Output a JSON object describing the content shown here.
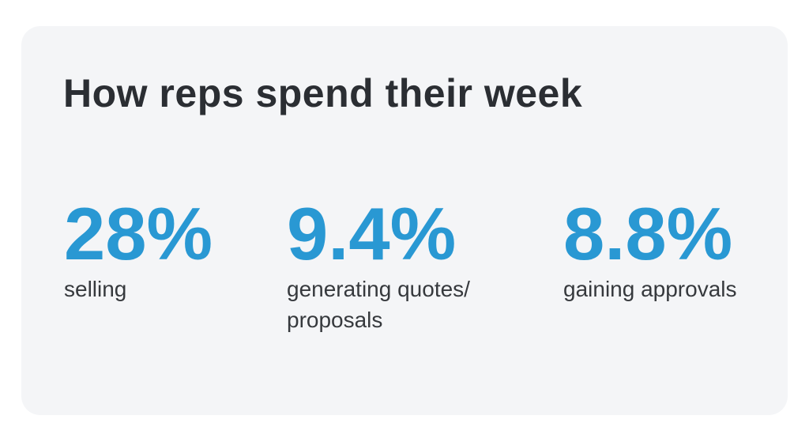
{
  "card": {
    "title": "How reps spend their week",
    "stats": [
      {
        "value": "28%",
        "label": "selling"
      },
      {
        "value": "9.4%",
        "label": "generating quotes/\nproposals"
      },
      {
        "value": "8.8%",
        "label": "gaining approvals"
      }
    ]
  },
  "colors": {
    "accent_blue": "#2998d3",
    "heading_text": "#2b2e33",
    "label_text": "#36393d",
    "card_background": "#f4f5f7",
    "page_background": "#ffffff"
  },
  "chart_data": {
    "type": "table",
    "title": "How reps spend their week",
    "categories": [
      "selling",
      "generating quotes/proposals",
      "gaining approvals"
    ],
    "values": [
      28,
      9.4,
      8.8
    ],
    "unit": "%",
    "value_color": "#2998d3",
    "layout": "three big-number stat columns inside rounded light-gray card"
  }
}
